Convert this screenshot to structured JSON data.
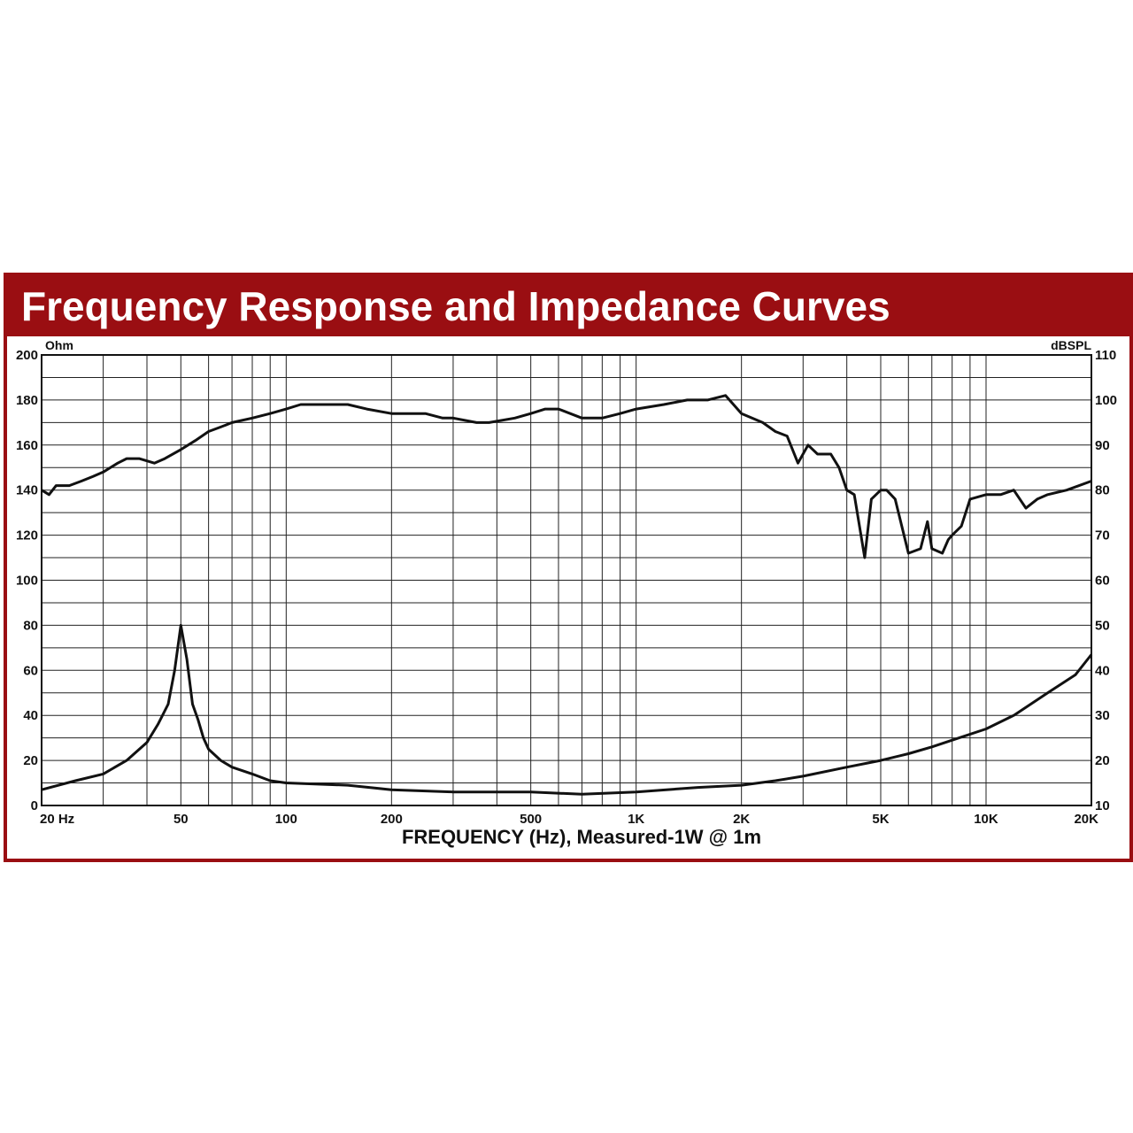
{
  "chart_data": {
    "type": "line",
    "title": "Frequency Response and Impedance Curves",
    "xlabel": "FREQUENCY (Hz), Measured-1W @ 1m",
    "x_scale": "log",
    "xlim": [
      20,
      20000
    ],
    "x_ticks": [
      {
        "value": 20,
        "label": "20 Hz"
      },
      {
        "value": 50,
        "label": "50"
      },
      {
        "value": 100,
        "label": "100"
      },
      {
        "value": 200,
        "label": "200"
      },
      {
        "value": 500,
        "label": "500"
      },
      {
        "value": 1000,
        "label": "1K"
      },
      {
        "value": 2000,
        "label": "2K"
      },
      {
        "value": 5000,
        "label": "5K"
      },
      {
        "value": 10000,
        "label": "10K"
      },
      {
        "value": 20000,
        "label": "20K"
      }
    ],
    "y_left": {
      "unit": "Ohm",
      "range": [
        0,
        200
      ],
      "ticks": [
        0,
        20,
        40,
        60,
        80,
        100,
        120,
        140,
        160,
        180,
        200
      ]
    },
    "y_right": {
      "unit": "dBSPL",
      "range": [
        10,
        110
      ],
      "ticks": [
        10,
        20,
        30,
        40,
        50,
        60,
        70,
        80,
        90,
        100,
        110
      ]
    },
    "grid": true,
    "colors": {
      "frame": "#9a0e12",
      "line": "#111111",
      "grid": "#222222"
    },
    "series": [
      {
        "axis": "right",
        "x": [
          20,
          21,
          22,
          24,
          26,
          28,
          30,
          33,
          35,
          38,
          42,
          45,
          50,
          55,
          60,
          65,
          70,
          80,
          90,
          100,
          110,
          120,
          150,
          170,
          200,
          250,
          280,
          300,
          350,
          380,
          450,
          500,
          550,
          600,
          700,
          800,
          900,
          1000,
          1200,
          1400,
          1600,
          1800,
          2000,
          2300,
          2500,
          2700,
          2900,
          3100,
          3300,
          3600,
          3800,
          4000,
          4200,
          4500,
          4700,
          5000,
          5200,
          5500,
          6000,
          6500,
          6800,
          7000,
          7500,
          7800,
          8000,
          8500,
          9000,
          10000,
          11000,
          12000,
          13000,
          14000,
          15000,
          17000,
          20000
        ],
        "y": [
          80,
          79,
          81,
          81,
          82,
          83,
          84,
          86,
          87,
          87,
          86,
          87,
          89,
          91,
          93,
          94,
          95,
          96,
          97,
          98,
          99,
          99,
          99,
          98,
          97,
          97,
          96,
          96,
          95,
          95,
          96,
          97,
          98,
          98,
          96,
          96,
          97,
          98,
          99,
          100,
          100,
          101,
          97,
          95,
          93,
          92,
          86,
          90,
          88,
          88,
          85,
          80,
          79,
          65,
          78,
          80,
          80,
          78,
          66,
          67,
          73,
          67,
          66,
          69,
          70,
          72,
          78,
          79,
          79,
          80,
          76,
          78,
          79,
          80,
          82
        ]
      },
      {
        "axis": "left",
        "x": [
          20,
          25,
          30,
          35,
          40,
          43,
          46,
          48,
          50,
          52,
          54,
          56,
          58,
          60,
          65,
          70,
          80,
          90,
          100,
          150,
          200,
          300,
          500,
          700,
          1000,
          1500,
          2000,
          2500,
          3000,
          4000,
          5000,
          6000,
          7000,
          8000,
          10000,
          12000,
          15000,
          18000,
          20000
        ],
        "y": [
          7,
          11,
          14,
          20,
          28,
          36,
          45,
          60,
          80,
          65,
          45,
          38,
          30,
          25,
          20,
          17,
          14,
          11,
          10,
          9,
          7,
          6,
          6,
          5,
          6,
          8,
          9,
          11,
          13,
          17,
          20,
          23,
          26,
          29,
          34,
          40,
          50,
          58,
          67
        ]
      }
    ]
  }
}
